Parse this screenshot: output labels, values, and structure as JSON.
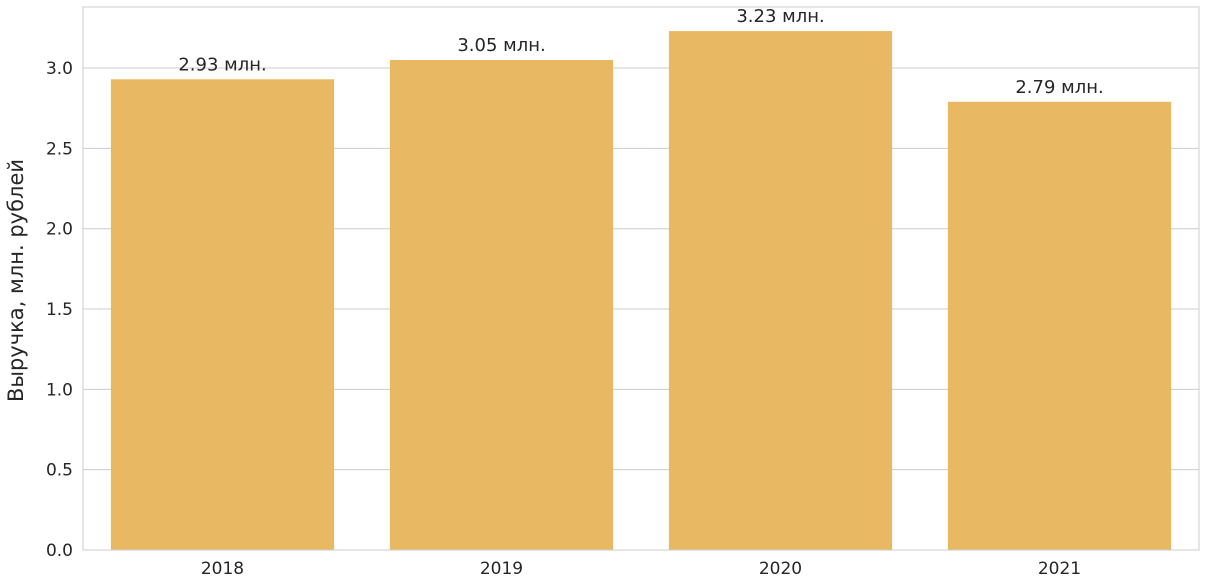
{
  "chart_data": {
    "type": "bar",
    "categories": [
      "2018",
      "2019",
      "2020",
      "2021"
    ],
    "values": [
      2.93,
      3.05,
      3.23,
      2.79
    ],
    "data_labels": [
      "2.93 млн.",
      "3.05 млн.",
      "3.23 млн.",
      "2.79 млн."
    ],
    "xlabel": "",
    "ylabel": "Выручка, млн. рублей",
    "ylim": [
      0,
      3.38
    ],
    "yticks": [
      0.0,
      0.5,
      1.0,
      1.5,
      2.0,
      2.5,
      3.0
    ],
    "ytick_labels": [
      "0.0",
      "0.5",
      "1.0",
      "1.5",
      "2.0",
      "2.5",
      "3.0"
    ],
    "grid": true,
    "bar_color": "#e8b862",
    "grid_color": "#cccccc",
    "frame_color": "#cccccc"
  }
}
